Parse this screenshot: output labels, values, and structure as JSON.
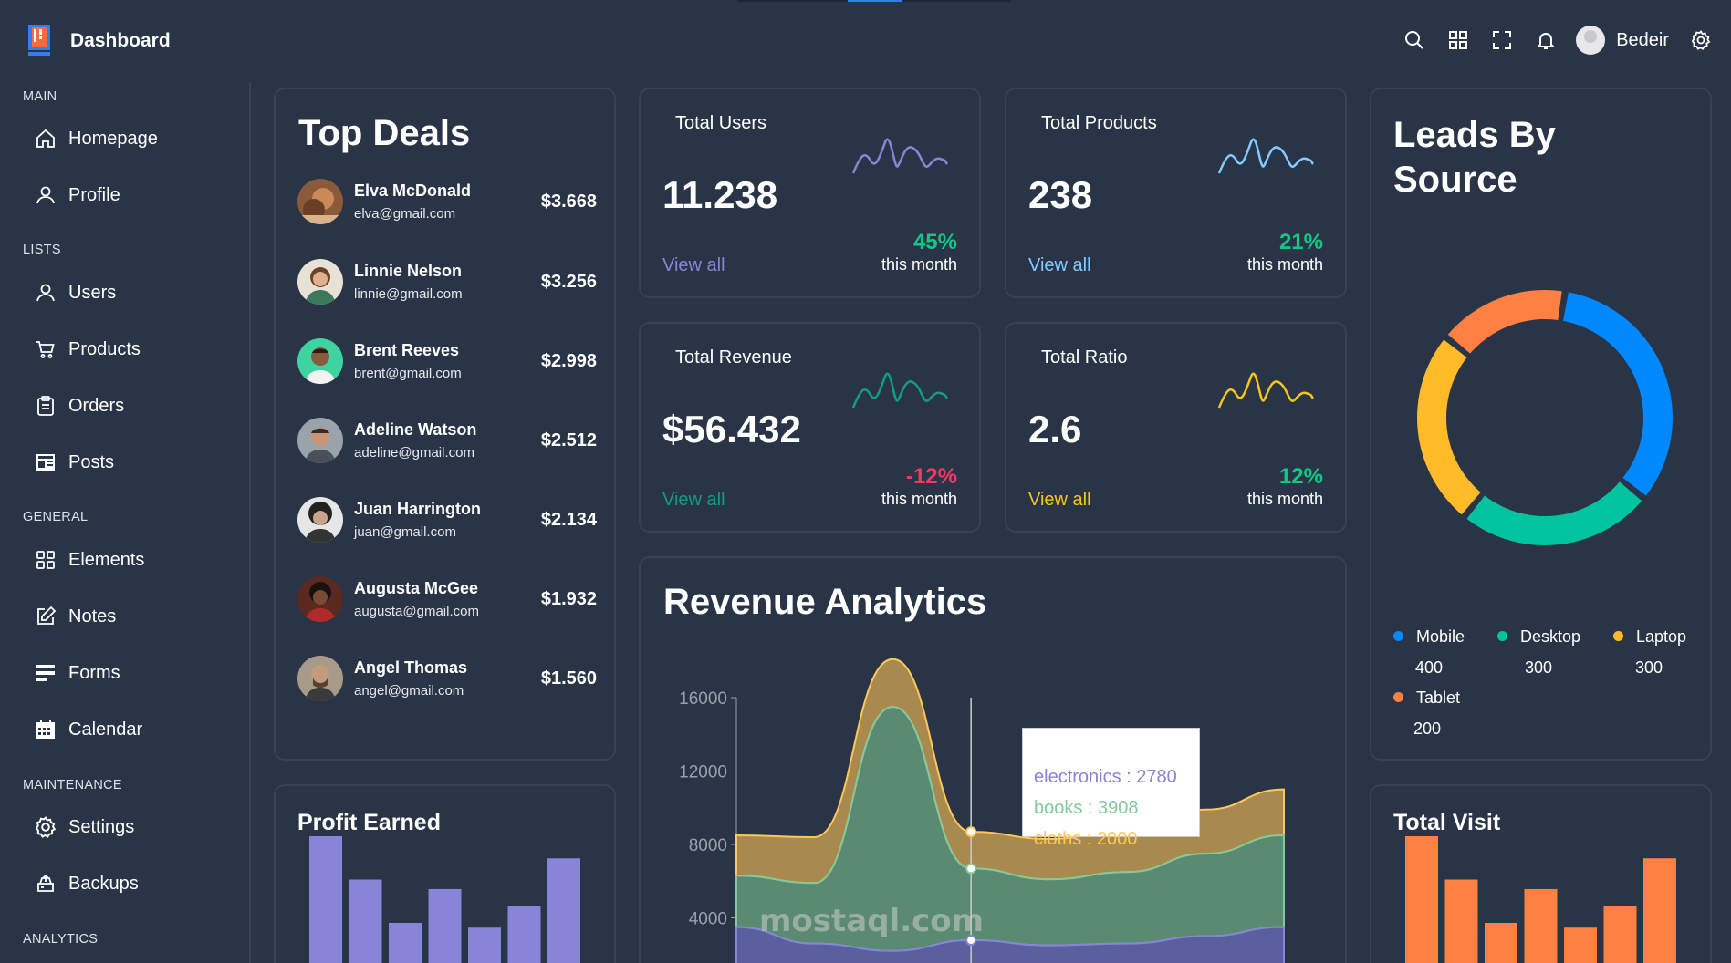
{
  "app": {
    "title": "Dashboard",
    "user": "Bedeir"
  },
  "sidebar": {
    "sections": [
      {
        "title": "MAIN",
        "items": [
          {
            "label": "Homepage",
            "icon": "home-icon"
          },
          {
            "label": "Profile",
            "icon": "user-icon"
          }
        ]
      },
      {
        "title": "LISTS",
        "items": [
          {
            "label": "Users",
            "icon": "user-icon"
          },
          {
            "label": "Products",
            "icon": "cart-icon"
          },
          {
            "label": "Orders",
            "icon": "clipboard-icon"
          },
          {
            "label": "Posts",
            "icon": "newspaper-icon"
          }
        ]
      },
      {
        "title": "GENERAL",
        "items": [
          {
            "label": "Elements",
            "icon": "grid-icon"
          },
          {
            "label": "Notes",
            "icon": "edit-icon"
          },
          {
            "label": "Forms",
            "icon": "form-icon"
          },
          {
            "label": "Calendar",
            "icon": "calendar-icon"
          }
        ]
      },
      {
        "title": "MAINTENANCE",
        "items": [
          {
            "label": "Settings",
            "icon": "gear-icon"
          },
          {
            "label": "Backups",
            "icon": "backup-icon"
          }
        ]
      },
      {
        "title": "ANALYTICS",
        "items": []
      }
    ]
  },
  "top_deals": {
    "title": "Top Deals",
    "rows": [
      {
        "name": "Elva McDonald",
        "email": "elva@gmail.com",
        "amount": "$3.668"
      },
      {
        "name": "Linnie Nelson",
        "email": "linnie@gmail.com",
        "amount": "$3.256"
      },
      {
        "name": "Brent Reeves",
        "email": "brent@gmail.com",
        "amount": "$2.998"
      },
      {
        "name": "Adeline Watson",
        "email": "adeline@gmail.com",
        "amount": "$2.512"
      },
      {
        "name": "Juan Harrington",
        "email": "juan@gmail.com",
        "amount": "$2.134"
      },
      {
        "name": "Augusta McGee",
        "email": "augusta@gmail.com",
        "amount": "$1.932"
      },
      {
        "name": "Angel Thomas",
        "email": "angel@gmail.com",
        "amount": "$1.560"
      }
    ]
  },
  "stats": [
    {
      "title": "Total Users",
      "value": "11.238",
      "link": "View all",
      "pct": "45%",
      "sub": "this month",
      "color": "#8884d8",
      "pct_color": "#16c784"
    },
    {
      "title": "Total Products",
      "value": "238",
      "link": "View all",
      "pct": "21%",
      "sub": "this month",
      "color": "#82caff",
      "pct_color": "#16c784"
    },
    {
      "title": "Total Revenue",
      "value": "$56.432",
      "link": "View all",
      "pct": "-12%",
      "sub": "this month",
      "color": "#0f9d8a",
      "pct_color": "#f03a5f"
    },
    {
      "title": "Total Ratio",
      "value": "2.6",
      "link": "View all",
      "pct": "12%",
      "sub": "this month",
      "color": "#f5c518",
      "pct_color": "#16c784"
    }
  ],
  "leads": {
    "title_line1": "Leads By",
    "title_line2": "Source",
    "items": [
      {
        "name": "Mobile",
        "value": "400",
        "color": "#0088fe"
      },
      {
        "name": "Desktop",
        "value": "300",
        "color": "#00c49f"
      },
      {
        "name": "Laptop",
        "value": "300",
        "color": "#ffbb28"
      },
      {
        "name": "Tablet",
        "value": "200",
        "color": "#ff8042"
      }
    ]
  },
  "revenue": {
    "title": "Revenue Analytics",
    "tooltip": {
      "electronics": "electronics : 2780",
      "books": "books : 3908",
      "cloths": "cloths : 2000"
    },
    "watermark": "mostaql.com"
  },
  "profit": {
    "title": "Profit Earned",
    "color": "#8884d8"
  },
  "visit": {
    "title": "Total Visit",
    "color": "#ff8042"
  },
  "chart_data": [
    {
      "type": "pie",
      "title": "Leads By Source",
      "categories": [
        "Mobile",
        "Desktop",
        "Laptop",
        "Tablet"
      ],
      "values": [
        400,
        300,
        300,
        200
      ]
    },
    {
      "type": "area",
      "title": "Revenue Analytics",
      "ylim": [
        0,
        16000
      ],
      "yticks": [
        4000,
        8000,
        12000,
        16000
      ],
      "series": [
        {
          "name": "electronics",
          "values": [
            3500,
            2600,
            2200,
            2780,
            2500,
            2600,
            3000,
            3500
          ]
        },
        {
          "name": "books",
          "values": [
            2800,
            3300,
            13300,
            3908,
            3600,
            3900,
            4500,
            5000
          ]
        },
        {
          "name": "cloths",
          "values": [
            2200,
            2500,
            2600,
            2000,
            2200,
            2300,
            2400,
            2500
          ]
        }
      ]
    },
    {
      "type": "bar",
      "title": "Profit Earned",
      "values": [
        4000,
        3000,
        2000,
        2780,
        1890,
        2390,
        3490
      ]
    },
    {
      "type": "bar",
      "title": "Total Visit",
      "values": [
        4000,
        3000,
        2000,
        2780,
        1890,
        2390,
        3490
      ]
    }
  ]
}
